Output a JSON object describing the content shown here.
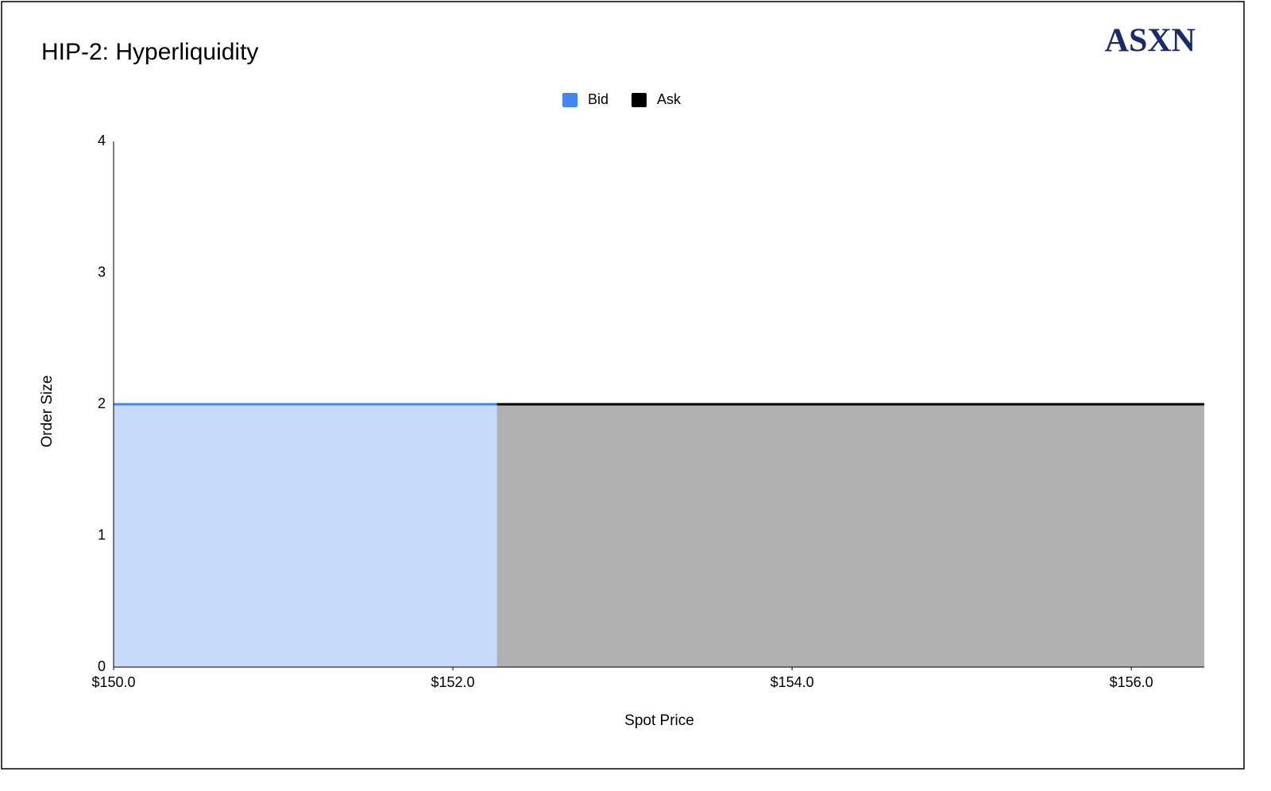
{
  "chart_data": {
    "type": "area",
    "title": "HIP-2: Hyperliquidity",
    "logo": "ASXN",
    "x_label": "Spot Price",
    "y_label": "Order Size",
    "series": [
      {
        "name": "Bid",
        "color": "#4285f4",
        "fill": "#c6d9f8",
        "x": [
          150,
          152.26
        ],
        "values": [
          2,
          2
        ]
      },
      {
        "name": "Ask",
        "color": "#000000",
        "fill": "#b1b1b1",
        "x": [
          152.26,
          156.43
        ],
        "values": [
          2,
          2
        ]
      }
    ],
    "xlim": [
      150,
      156.43
    ],
    "xticks": [
      {
        "value": 150,
        "label": "$150.0"
      },
      {
        "value": 152,
        "label": "$152.0"
      },
      {
        "value": 154,
        "label": "$154.0"
      },
      {
        "value": 156,
        "label": "$156.0"
      }
    ],
    "ylim": [
      0,
      4
    ],
    "yticks": [
      0,
      1,
      2,
      3,
      4
    ],
    "grid": false,
    "legend": "top"
  }
}
